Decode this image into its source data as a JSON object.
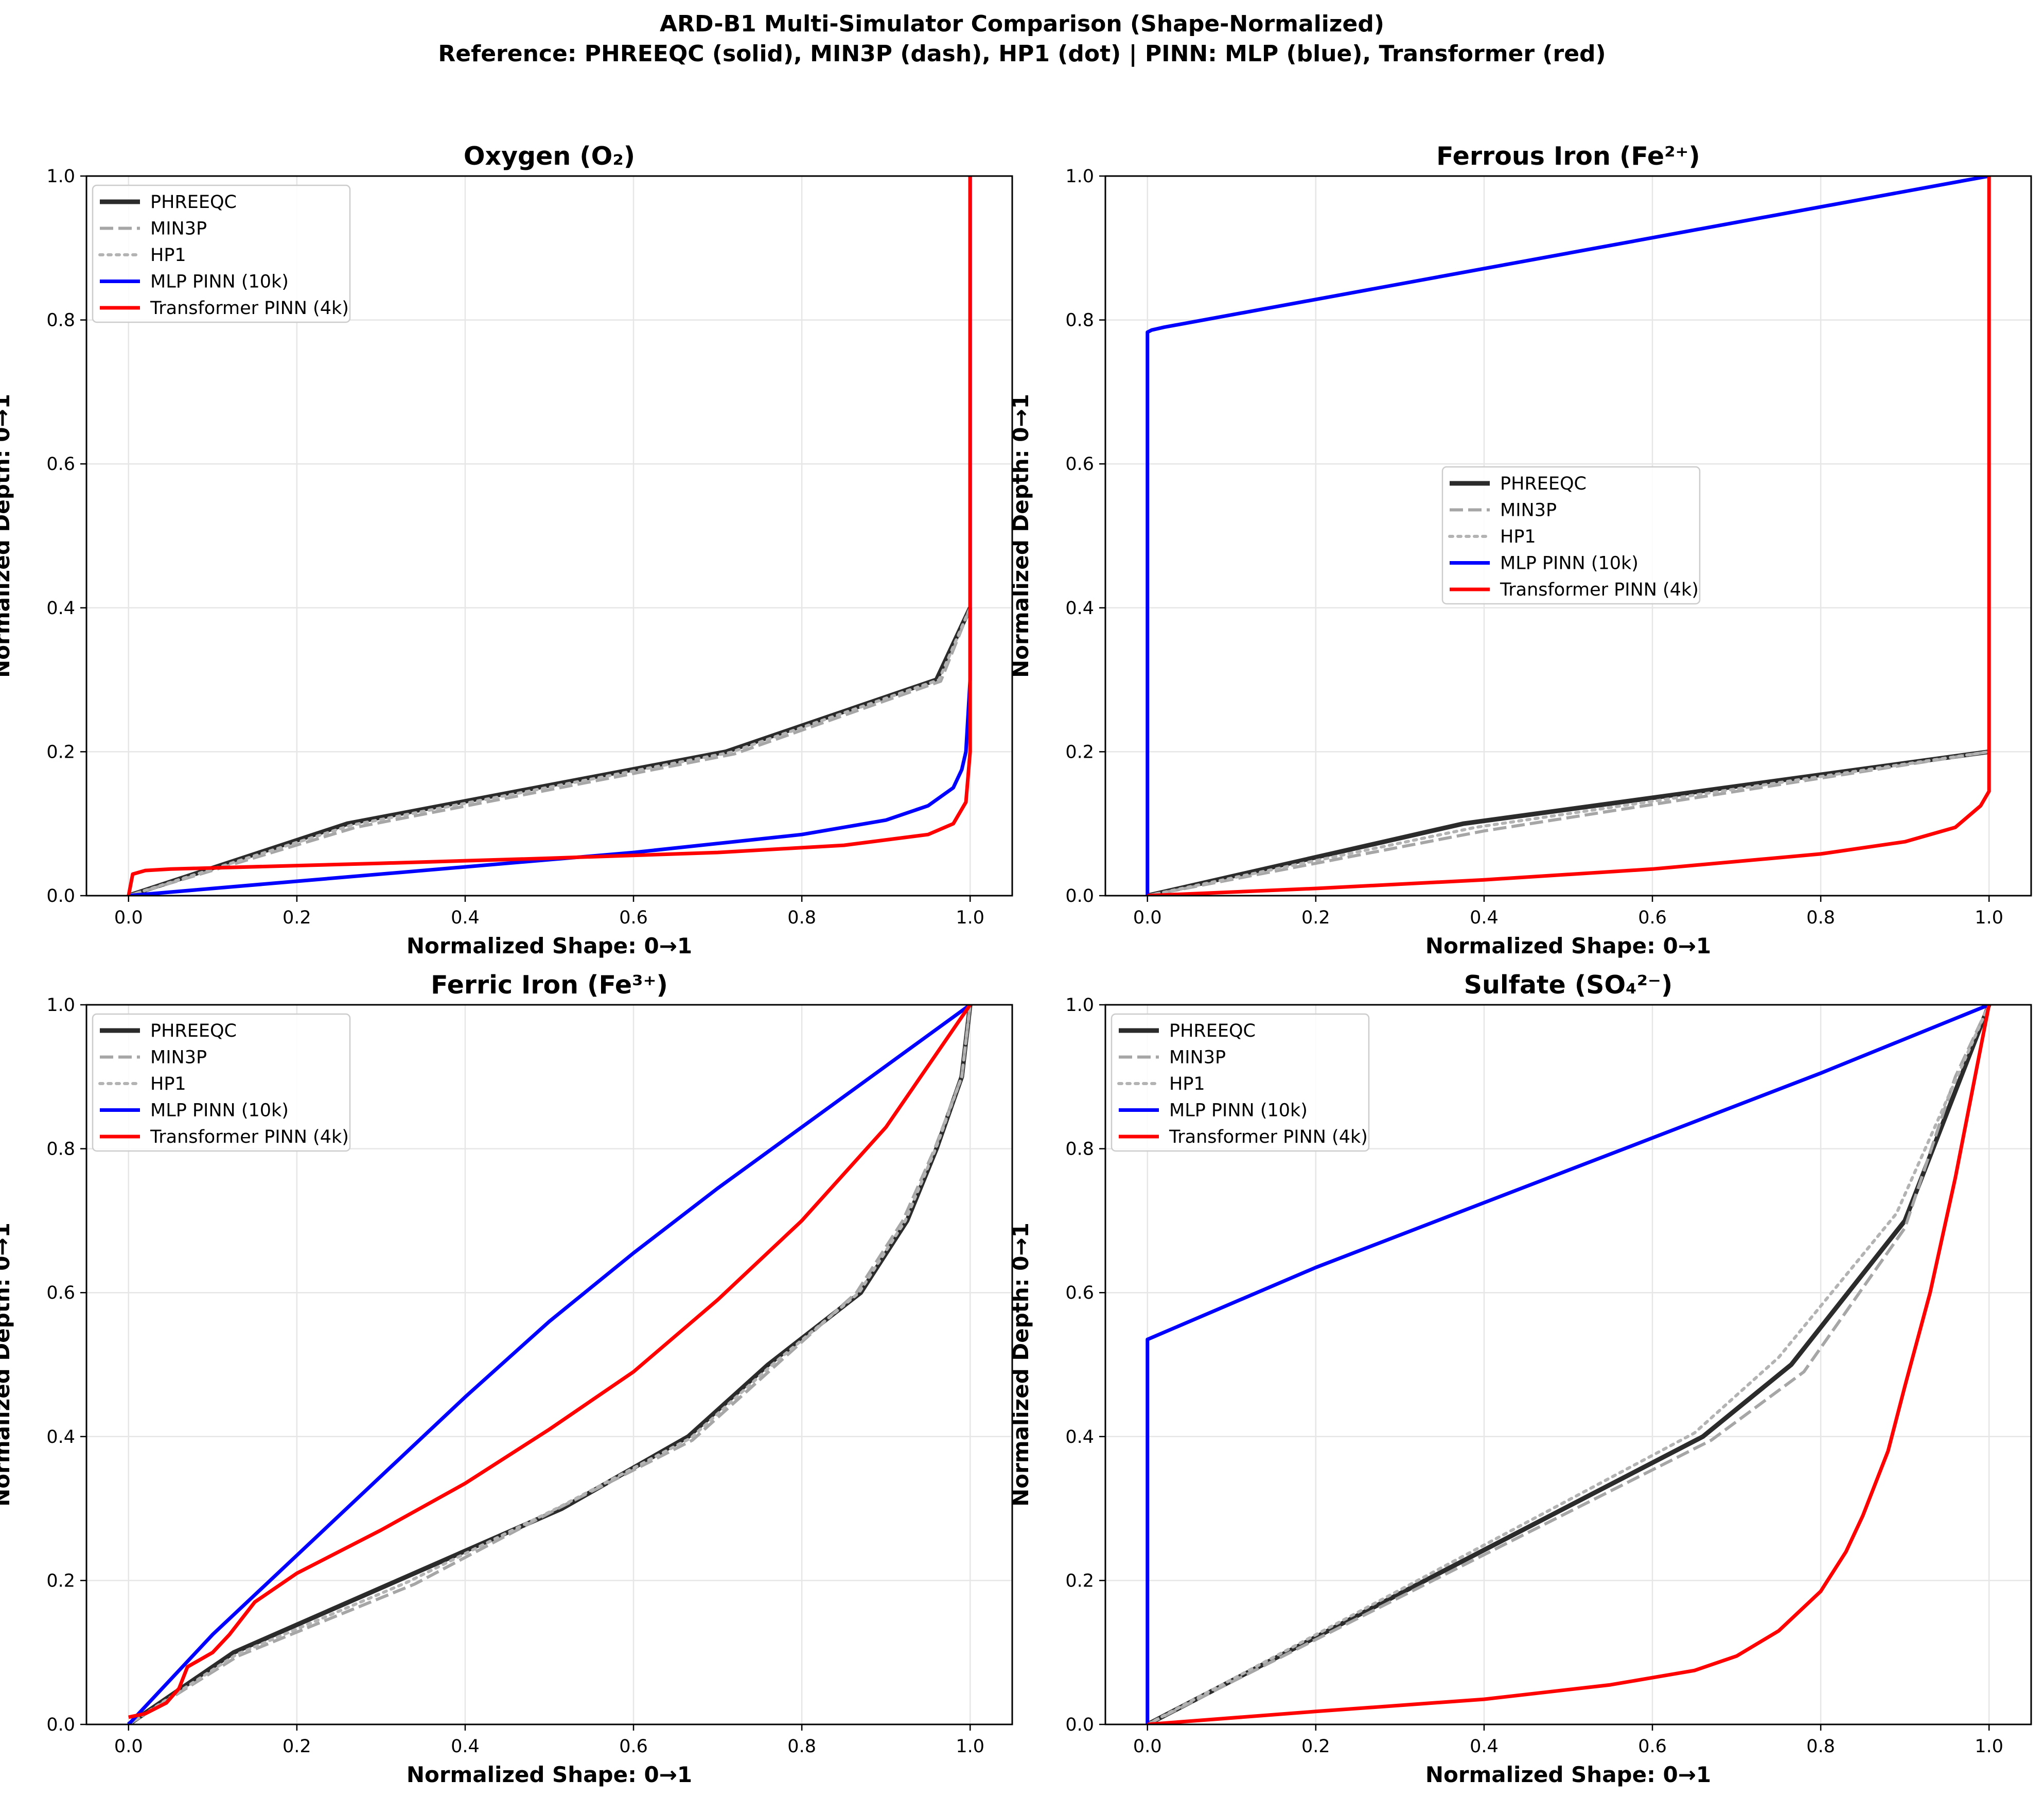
{
  "figure": {
    "title": "ARD-B1 Multi-Simulator Comparison (Shape-Normalized)",
    "subtitle": "Reference: PHREEQC (solid), MIN3P (dash), HP1 (dot)  |  PINN: MLP (blue), Transformer (red)"
  },
  "styles": {
    "PHREEQC": {
      "color": "#2b2b2b",
      "dash": "solid"
    },
    "MIN3P": {
      "color": "#a6a6a6",
      "dash": "dashed"
    },
    "HP1": {
      "color": "#b3b3b3",
      "dash": "dotted"
    },
    "MLP PINN (10k)": {
      "color": "#0000ff",
      "dash": "solid"
    },
    "Transformer PINN (4k)": {
      "color": "#ff0000",
      "dash": "solid"
    }
  },
  "chart_data": [
    {
      "type": "line",
      "title": "Oxygen (O₂)",
      "xlabel": "Normalized Shape: 0→1",
      "ylabel": "Normalized Depth: 0→1",
      "xlim": [
        -0.05,
        1.05
      ],
      "ylim": [
        0,
        1
      ],
      "xticks": [
        "0.0",
        "0.2",
        "0.4",
        "0.6",
        "0.8",
        "1.0"
      ],
      "yticks": [
        "0.0",
        "0.2",
        "0.4",
        "0.6",
        "0.8",
        "1.0"
      ],
      "grid": true,
      "legend_position": "top-left",
      "series": [
        {
          "name": "PHREEQC",
          "x": [
            0,
            0.26,
            0.71,
            0.96,
            1.0
          ],
          "y": [
            0,
            0.1,
            0.2,
            0.3,
            0.4
          ]
        },
        {
          "name": "MIN3P",
          "x": [
            0,
            0.27,
            0.72,
            0.965,
            1.0
          ],
          "y": [
            0,
            0.095,
            0.197,
            0.298,
            0.4
          ]
        },
        {
          "name": "HP1",
          "x": [
            0,
            0.265,
            0.715,
            0.963,
            1.0
          ],
          "y": [
            0,
            0.098,
            0.199,
            0.3,
            0.4
          ]
        },
        {
          "name": "MLP PINN (10k)",
          "x": [
            0,
            0.2,
            0.4,
            0.6,
            0.8,
            0.9,
            0.95,
            0.98,
            0.99,
            0.995,
            1.0,
            1.0
          ],
          "y": [
            0,
            0.02,
            0.04,
            0.06,
            0.085,
            0.105,
            0.125,
            0.15,
            0.175,
            0.2,
            0.3,
            1.0
          ]
        },
        {
          "name": "Transformer PINN (4k)",
          "x": [
            0,
            0.005,
            0.02,
            0.05,
            0.3,
            0.5,
            0.7,
            0.85,
            0.95,
            0.98,
            0.995,
            1.0,
            1.0
          ],
          "y": [
            0,
            0.03,
            0.035,
            0.037,
            0.045,
            0.052,
            0.06,
            0.07,
            0.085,
            0.1,
            0.13,
            0.2,
            1.0
          ]
        }
      ]
    },
    {
      "type": "line",
      "title": "Ferrous Iron (Fe²⁺)",
      "xlabel": "Normalized Shape: 0→1",
      "ylabel": "Normalized Depth: 0→1",
      "xlim": [
        -0.05,
        1.05
      ],
      "ylim": [
        0,
        1
      ],
      "xticks": [
        "0.0",
        "0.2",
        "0.4",
        "0.6",
        "0.8",
        "1.0"
      ],
      "yticks": [
        "0.0",
        "0.2",
        "0.4",
        "0.6",
        "0.8",
        "1.0"
      ],
      "grid": true,
      "legend_position": "center",
      "series": [
        {
          "name": "PHREEQC",
          "x": [
            0,
            0.375,
            1.0
          ],
          "y": [
            0,
            0.1,
            0.2
          ]
        },
        {
          "name": "MIN3P",
          "x": [
            0,
            0.4,
            1.0
          ],
          "y": [
            0,
            0.09,
            0.2
          ]
        },
        {
          "name": "HP1",
          "x": [
            0,
            0.39,
            1.0
          ],
          "y": [
            0,
            0.095,
            0.2
          ]
        },
        {
          "name": "MLP PINN (10k)",
          "x": [
            0,
            0,
            0.005,
            0.02,
            1.0
          ],
          "y": [
            0,
            0.783,
            0.786,
            0.79,
            1.0
          ]
        },
        {
          "name": "Transformer PINN (4k)",
          "x": [
            0,
            0.2,
            0.4,
            0.6,
            0.8,
            0.9,
            0.96,
            0.99,
            1.0,
            1.0
          ],
          "y": [
            0,
            0.01,
            0.022,
            0.037,
            0.058,
            0.075,
            0.095,
            0.125,
            0.145,
            1.0
          ]
        }
      ]
    },
    {
      "type": "line",
      "title": "Ferric Iron (Fe³⁺)",
      "xlabel": "Normalized Shape: 0→1",
      "ylabel": "Normalized Depth: 0→1",
      "xlim": [
        -0.05,
        1.05
      ],
      "ylim": [
        0,
        1
      ],
      "xticks": [
        "0.0",
        "0.2",
        "0.4",
        "0.6",
        "0.8",
        "1.0"
      ],
      "yticks": [
        "0.0",
        "0.2",
        "0.4",
        "0.6",
        "0.8",
        "1.0"
      ],
      "grid": true,
      "legend_position": "top-left",
      "series": [
        {
          "name": "PHREEQC",
          "x": [
            0,
            0.125,
            0.32,
            0.515,
            0.665,
            0.76,
            0.87,
            0.925,
            0.96,
            0.99,
            1.0
          ],
          "y": [
            0,
            0.1,
            0.2,
            0.3,
            0.4,
            0.5,
            0.6,
            0.7,
            0.8,
            0.9,
            1.0
          ]
        },
        {
          "name": "MIN3P",
          "x": [
            0,
            0.13,
            0.34,
            0.51,
            0.67,
            0.77,
            0.865,
            0.92,
            0.958,
            0.99,
            1.0
          ],
          "y": [
            0,
            0.095,
            0.195,
            0.3,
            0.395,
            0.5,
            0.6,
            0.7,
            0.8,
            0.9,
            1.0
          ]
        },
        {
          "name": "HP1",
          "x": [
            0,
            0.128,
            0.33,
            0.512,
            0.668,
            0.765,
            0.868,
            0.923,
            0.959,
            0.99,
            1.0
          ],
          "y": [
            0,
            0.097,
            0.197,
            0.302,
            0.398,
            0.5,
            0.6,
            0.7,
            0.8,
            0.9,
            1.0
          ]
        },
        {
          "name": "MLP PINN (10k)",
          "x": [
            0,
            0.1,
            0.2,
            0.3,
            0.4,
            0.5,
            0.6,
            0.7,
            0.8,
            0.9,
            1.0
          ],
          "y": [
            0,
            0.125,
            0.235,
            0.345,
            0.455,
            0.56,
            0.655,
            0.745,
            0.83,
            0.915,
            1.0
          ]
        },
        {
          "name": "Transformer PINN (4k)",
          "x": [
            0,
            0.02,
            0.045,
            0.06,
            0.07,
            0.1,
            0.12,
            0.15,
            0.2,
            0.3,
            0.4,
            0.5,
            0.6,
            0.7,
            0.8,
            0.9,
            1.0
          ],
          "y": [
            0.01,
            0.015,
            0.03,
            0.05,
            0.08,
            0.1,
            0.125,
            0.17,
            0.21,
            0.27,
            0.335,
            0.41,
            0.49,
            0.59,
            0.7,
            0.83,
            1.0
          ]
        }
      ]
    },
    {
      "type": "line",
      "title": "Sulfate (SO₄²⁻)",
      "xlabel": "Normalized Shape: 0→1",
      "ylabel": "Normalized Depth: 0→1",
      "xlim": [
        -0.05,
        1.05
      ],
      "ylim": [
        0,
        1
      ],
      "xticks": [
        "0.0",
        "0.2",
        "0.4",
        "0.6",
        "0.8",
        "1.0"
      ],
      "yticks": [
        "0.0",
        "0.2",
        "0.4",
        "0.6",
        "0.8",
        "1.0"
      ],
      "grid": true,
      "legend_position": "top-left",
      "series": [
        {
          "name": "PHREEQC",
          "x": [
            0,
            0.66,
            0.765,
            0.9,
            1.0
          ],
          "y": [
            0,
            0.4,
            0.5,
            0.7,
            1.0
          ]
        },
        {
          "name": "MIN3P",
          "x": [
            0,
            0.67,
            0.78,
            0.9,
            0.96,
            1.0
          ],
          "y": [
            0,
            0.395,
            0.49,
            0.69,
            0.9,
            1.0
          ]
        },
        {
          "name": "HP1",
          "x": [
            0,
            0.65,
            0.75,
            0.89,
            1.0
          ],
          "y": [
            0,
            0.405,
            0.51,
            0.71,
            1.0
          ]
        },
        {
          "name": "MLP PINN (10k)",
          "x": [
            0,
            0,
            0.01,
            0.2,
            0.4,
            0.6,
            0.8,
            1.0
          ],
          "y": [
            0,
            0.535,
            0.54,
            0.635,
            0.725,
            0.815,
            0.905,
            1.0
          ]
        },
        {
          "name": "Transformer PINN (4k)",
          "x": [
            0,
            0.2,
            0.4,
            0.55,
            0.65,
            0.7,
            0.75,
            0.8,
            0.83,
            0.85,
            0.88,
            0.9,
            0.93,
            0.96,
            0.98,
            1.0
          ],
          "y": [
            0,
            0.018,
            0.035,
            0.055,
            0.075,
            0.095,
            0.13,
            0.185,
            0.24,
            0.29,
            0.38,
            0.47,
            0.6,
            0.76,
            0.88,
            1.0
          ]
        }
      ]
    }
  ]
}
